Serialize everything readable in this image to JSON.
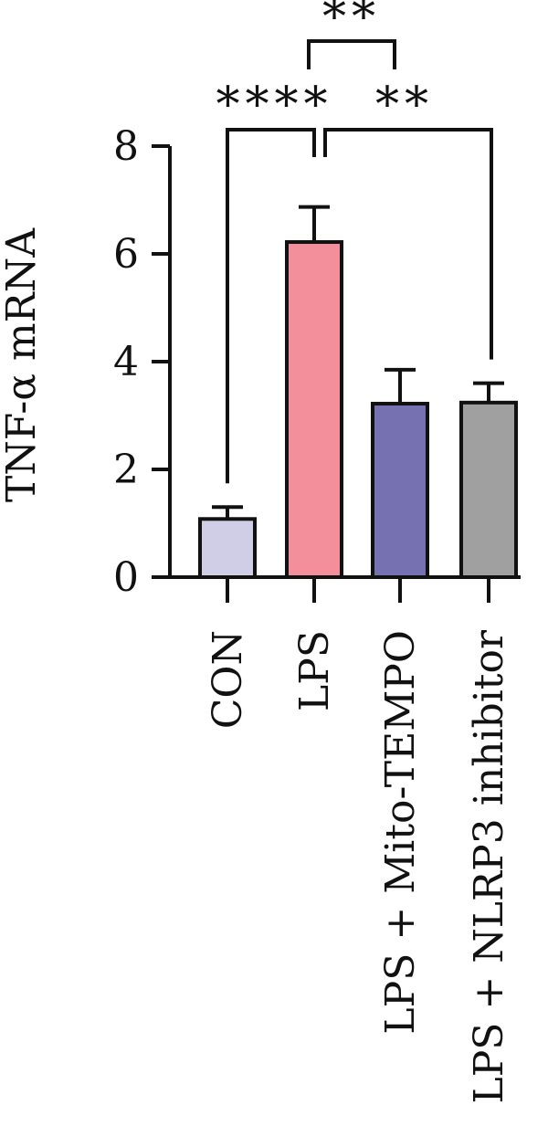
{
  "chart_data": {
    "type": "bar",
    "title": "",
    "xlabel": "",
    "ylabel": "TNF-α mRNA",
    "ylim": [
      0,
      8
    ],
    "yticks": [
      0,
      2,
      4,
      6,
      8
    ],
    "grid": false,
    "categories": [
      "CON",
      "LPS",
      "LPS + Mito-TEMPO",
      "LPS + NLRP3 inhibitor"
    ],
    "values": [
      1.08,
      6.22,
      3.22,
      3.24
    ],
    "errors": [
      0.22,
      0.65,
      0.63,
      0.36
    ],
    "colors": [
      "#d0cde6",
      "#f38f9b",
      "#7671b1",
      "#a0a0a0"
    ],
    "significance": [
      {
        "from": 0,
        "to": 1,
        "label": "****"
      },
      {
        "from": 1,
        "to": 3,
        "label": "**"
      },
      {
        "from": 1,
        "to": 2,
        "label": "**"
      }
    ]
  }
}
